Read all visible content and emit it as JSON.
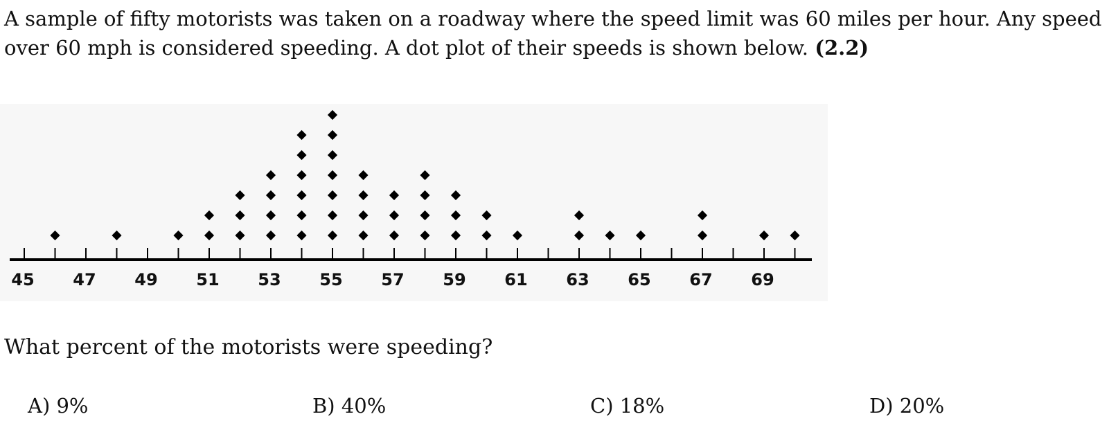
{
  "question": {
    "intro_part1": "A sample of fifty motorists was taken on a roadway where the speed limit was 60 miles per hour.   Any speed over 60 mph is  considered speeding.  A dot plot of their speeds is shown below.",
    "intro_ref": "(2.2)",
    "prompt": "What percent of the motorists were speeding?"
  },
  "choices": [
    {
      "label": "A) 9%"
    },
    {
      "label": "B) 40%"
    },
    {
      "label": "C) 18%"
    },
    {
      "label": "D) 20%"
    }
  ],
  "chart_data": {
    "type": "scatter",
    "subtype": "dot-plot",
    "title": "",
    "xlabel": "",
    "ylabel": "",
    "xlim": [
      45,
      70
    ],
    "x_ticks": [
      45,
      46,
      47,
      48,
      49,
      50,
      51,
      52,
      53,
      54,
      55,
      56,
      57,
      58,
      59,
      60,
      61,
      62,
      63,
      64,
      65,
      66,
      67,
      68,
      69,
      70
    ],
    "x_tick_labels": [
      "45",
      "47",
      "49",
      "51",
      "53",
      "55",
      "57",
      "59",
      "61",
      "63",
      "65",
      "67",
      "69"
    ],
    "points": [
      {
        "x": 46,
        "count": 1
      },
      {
        "x": 48,
        "count": 1
      },
      {
        "x": 50,
        "count": 1
      },
      {
        "x": 51,
        "count": 2
      },
      {
        "x": 52,
        "count": 3
      },
      {
        "x": 53,
        "count": 4
      },
      {
        "x": 54,
        "count": 6
      },
      {
        "x": 55,
        "count": 7
      },
      {
        "x": 56,
        "count": 4
      },
      {
        "x": 57,
        "count": 3
      },
      {
        "x": 58,
        "count": 4
      },
      {
        "x": 59,
        "count": 3
      },
      {
        "x": 60,
        "count": 2
      },
      {
        "x": 61,
        "count": 1
      },
      {
        "x": 63,
        "count": 2
      },
      {
        "x": 64,
        "count": 1
      },
      {
        "x": 65,
        "count": 1
      },
      {
        "x": 67,
        "count": 2
      },
      {
        "x": 69,
        "count": 1
      },
      {
        "x": 70,
        "count": 1
      }
    ],
    "grid": false,
    "colors": {
      "dots": "#000000",
      "axis": "#000000"
    }
  }
}
